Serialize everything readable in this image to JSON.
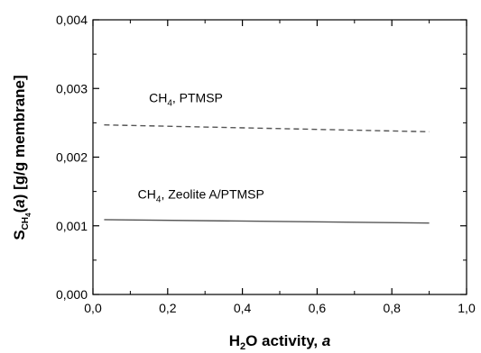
{
  "chart_data": {
    "type": "line",
    "xlim": [
      0.0,
      1.0
    ],
    "ylim": [
      0.0,
      0.004
    ],
    "x_ticks": [
      {
        "value": 0.0,
        "label": "0,0"
      },
      {
        "value": 0.2,
        "label": "0,2"
      },
      {
        "value": 0.4,
        "label": "0,4"
      },
      {
        "value": 0.6,
        "label": "0,6"
      },
      {
        "value": 0.8,
        "label": "0,8"
      },
      {
        "value": 1.0,
        "label": "1,0"
      }
    ],
    "y_ticks": [
      {
        "value": 0.0,
        "label": "0,000"
      },
      {
        "value": 0.001,
        "label": "0,001"
      },
      {
        "value": 0.002,
        "label": "0,002"
      },
      {
        "value": 0.003,
        "label": "0,003"
      },
      {
        "value": 0.004,
        "label": "0,004"
      }
    ],
    "xlabel": {
      "main": "H",
      "sub": "2",
      "rest": "O activity, ",
      "italic": "a"
    },
    "ylabel": {
      "main": "S",
      "sub": "CH",
      "subsub": "4",
      "paren_open": "(",
      "italic": "a",
      "paren_close": ")",
      "rest": " [g/g membrane]"
    },
    "grid": false,
    "series": [
      {
        "name": "CH4, PTMSP",
        "style": "dashed",
        "color": "#555555",
        "x": [
          0.03,
          0.9
        ],
        "y": [
          0.00247,
          0.00237
        ]
      },
      {
        "name": "CH4, Zeolite A/PTMSP",
        "style": "solid",
        "color": "#555555",
        "x": [
          0.03,
          0.9
        ],
        "y": [
          0.00109,
          0.00104
        ]
      }
    ],
    "annotations": [
      {
        "prefix": "CH",
        "sub": "4",
        "suffix": ", PTMSP",
        "x": 0.15,
        "y": 0.0028
      },
      {
        "prefix": "CH",
        "sub": "4",
        "suffix": ", Zeolite A/PTMSP",
        "x": 0.12,
        "y": 0.0014
      }
    ]
  }
}
